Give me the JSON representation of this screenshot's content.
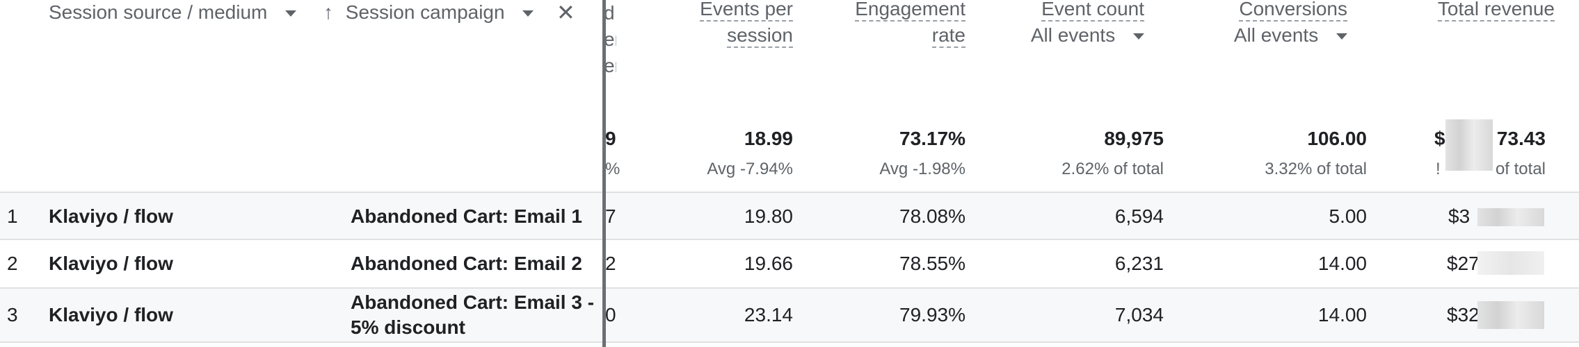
{
  "dimensions": {
    "col1_label": "Session source / medium",
    "col2_label": "Session campaign",
    "sort_arrow": "↑",
    "close_symbol": "✕"
  },
  "partial_col": {
    "header_lines": [
      "d",
      "er",
      "er"
    ],
    "total_value": "9",
    "total_sub": "%",
    "rows": [
      "7",
      "2",
      "0"
    ]
  },
  "metrics": {
    "events_per_session": {
      "line1": "Events per",
      "line2": "session",
      "total": "18.99",
      "sub": "Avg -7.94%"
    },
    "engagement_rate": {
      "line1": "Engagement",
      "line2": "rate",
      "total": "73.17%",
      "sub": "Avg -1.98%"
    },
    "event_count": {
      "label": "Event count",
      "filter": "All events",
      "total": "89,975",
      "sub": "2.62% of total"
    },
    "conversions": {
      "label": "Conversions",
      "filter": "All events",
      "total": "106.00",
      "sub": "3.32% of total"
    },
    "total_revenue": {
      "label": "Total revenue",
      "total_prefix": "$",
      "total_suffix": "73.43",
      "sub_prefix": "!",
      "sub_suffix": "of total"
    }
  },
  "rows": [
    {
      "num": "1",
      "source": "Klaviyo / flow",
      "campaign_line1": "Abandoned Cart: Email 1",
      "campaign_line2": "",
      "events_per_session": "19.80",
      "engagement_rate": "78.08%",
      "event_count": "6,594",
      "conversions": "5.00",
      "revenue": "$3"
    },
    {
      "num": "2",
      "source": "Klaviyo / flow",
      "campaign_line1": "Abandoned Cart: Email 2",
      "campaign_line2": "",
      "events_per_session": "19.66",
      "engagement_rate": "78.55%",
      "event_count": "6,231",
      "conversions": "14.00",
      "revenue": "$27"
    },
    {
      "num": "3",
      "source": "Klaviyo / flow",
      "campaign_line1": "Abandoned Cart: Email 3 -",
      "campaign_line2": "5% discount",
      "events_per_session": "23.14",
      "engagement_rate": "79.93%",
      "event_count": "7,034",
      "conversions": "14.00",
      "revenue": "$32"
    }
  ]
}
